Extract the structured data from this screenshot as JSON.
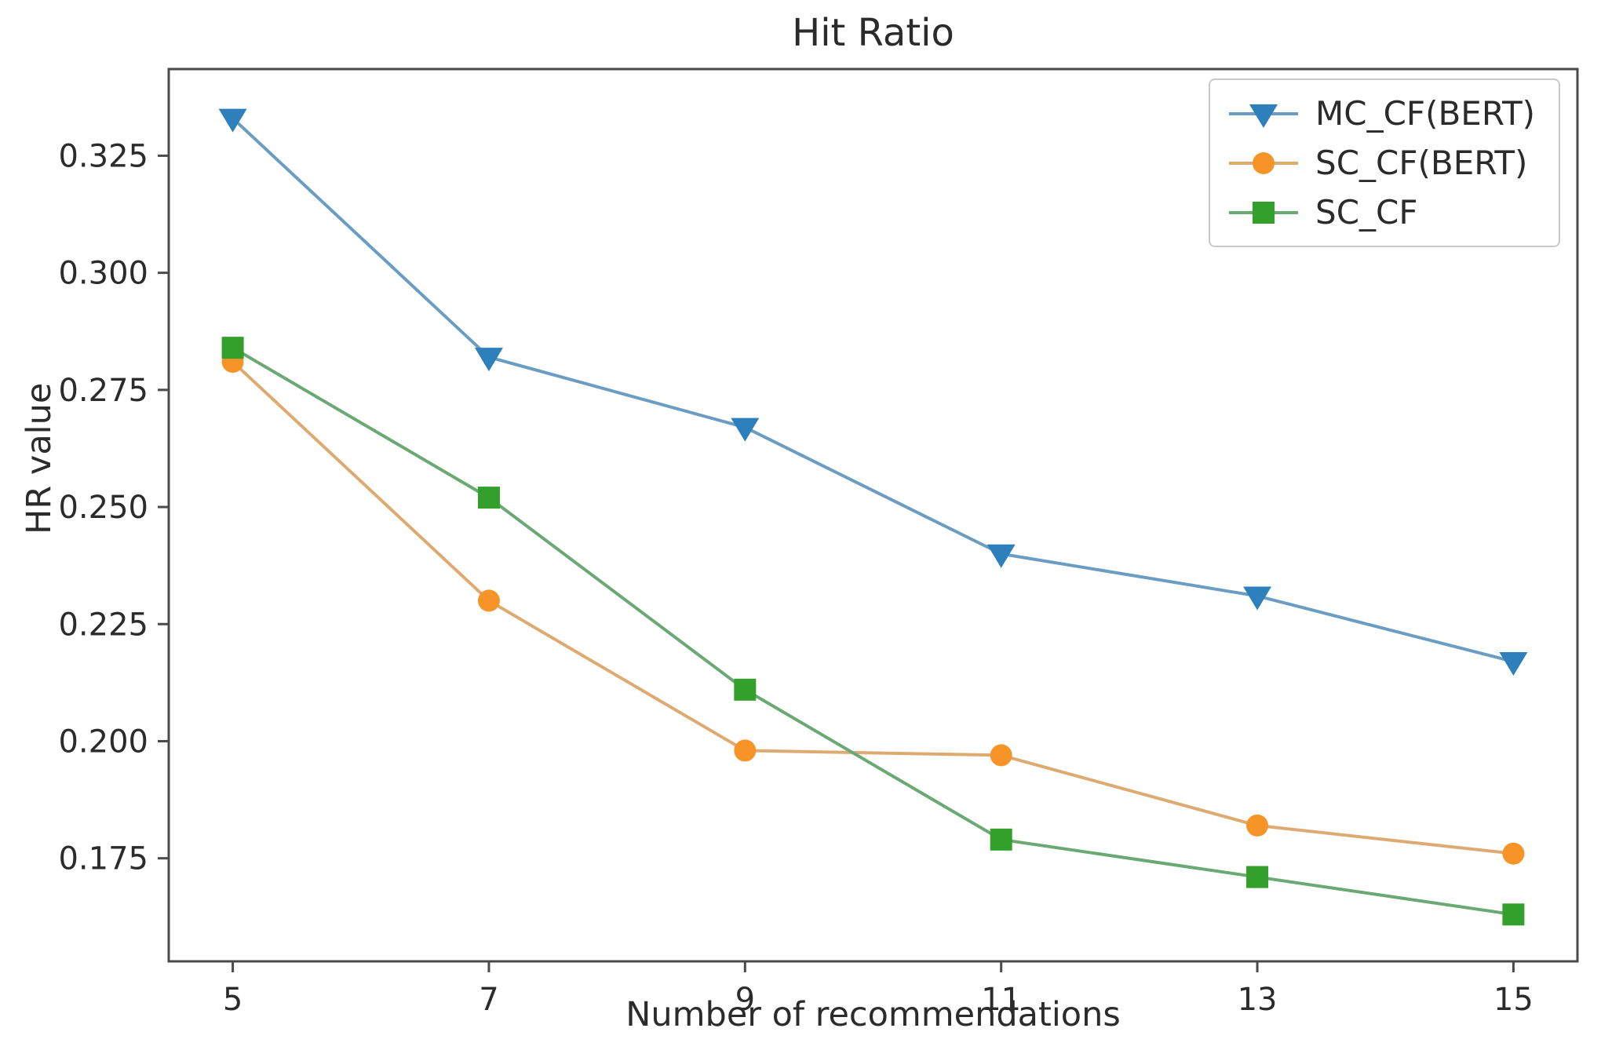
{
  "figure": {
    "background_color": "#ffffff",
    "frame_color": "#4a4a4a"
  },
  "chart_data": {
    "type": "line",
    "title": "Hit Ratio",
    "xlabel": "Number of recommendations",
    "ylabel": "HR value",
    "x": [
      5,
      7,
      9,
      11,
      13,
      15
    ],
    "x_tick_labels": [
      "5",
      "7",
      "9",
      "11",
      "13",
      "15"
    ],
    "y_tick_values": [
      0.175,
      0.2,
      0.225,
      0.25,
      0.275,
      0.3,
      0.325
    ],
    "y_tick_labels": [
      "0.175",
      "0.200",
      "0.225",
      "0.250",
      "0.275",
      "0.300",
      "0.325"
    ],
    "xlim": [
      4.5,
      15.5
    ],
    "ylim": [
      0.153,
      0.3435
    ],
    "grid": false,
    "legend_position": "upper right",
    "series": [
      {
        "name": "MC_CF(BERT)",
        "marker": "triangle-down",
        "marker_color": "#2e80bc",
        "line_color": "#6b9dc2",
        "values": [
          0.333,
          0.282,
          0.267,
          0.24,
          0.231,
          0.217
        ]
      },
      {
        "name": "SC_CF(BERT)",
        "marker": "circle",
        "marker_color": "#f79428",
        "line_color": "#ddab72",
        "values": [
          0.281,
          0.23,
          0.198,
          0.197,
          0.182,
          0.176
        ]
      },
      {
        "name": "SC_CF",
        "marker": "square",
        "marker_color": "#33a02c",
        "line_color": "#6aa974",
        "values": [
          0.284,
          0.252,
          0.211,
          0.179,
          0.171,
          0.163
        ]
      }
    ]
  }
}
